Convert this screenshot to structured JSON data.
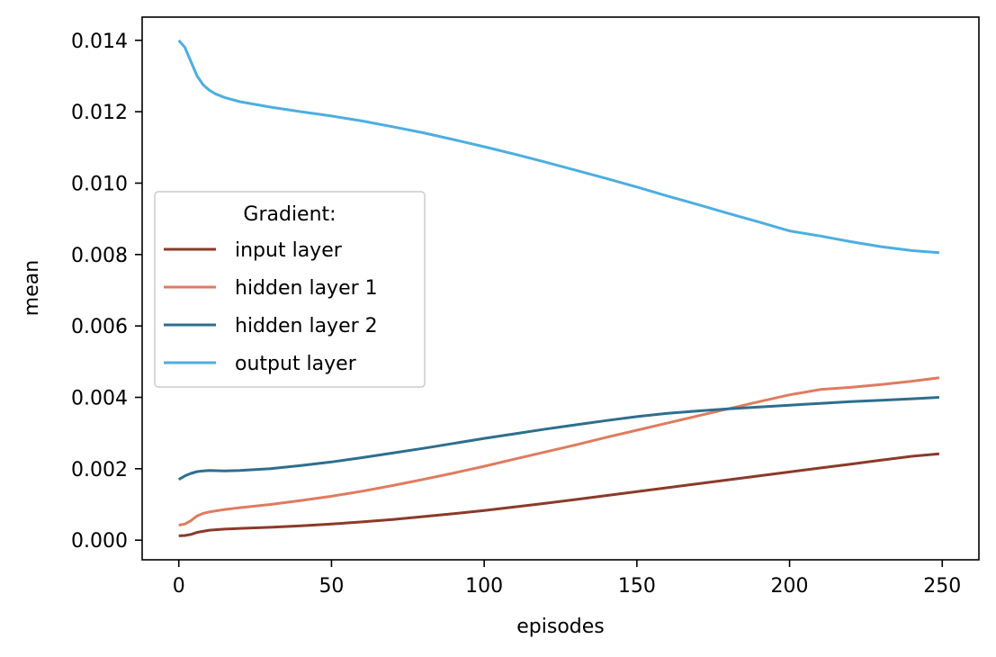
{
  "chart_data": {
    "type": "line",
    "title": "",
    "xlabel": "episodes",
    "ylabel": "mean",
    "xlim": [
      -12,
      262
    ],
    "ylim": [
      -0.00055,
      0.01465
    ],
    "xticks": [
      0,
      50,
      100,
      150,
      200,
      250
    ],
    "xtick_labels": [
      "0",
      "50",
      "100",
      "150",
      "200",
      "250"
    ],
    "yticks": [
      0.0,
      0.002,
      0.004,
      0.006,
      0.008,
      0.01,
      0.012,
      0.014
    ],
    "ytick_labels": [
      "0.000",
      "0.002",
      "0.004",
      "0.006",
      "0.008",
      "0.010",
      "0.012",
      "0.014"
    ],
    "grid": false,
    "legend": {
      "title": "Gradient:",
      "position": "center-left"
    },
    "series": [
      {
        "name": "input layer",
        "color": "#8b3a2a",
        "x": [
          0,
          2,
          4,
          6,
          10,
          15,
          20,
          30,
          40,
          50,
          60,
          70,
          80,
          90,
          100,
          110,
          120,
          130,
          140,
          150,
          160,
          170,
          180,
          190,
          200,
          210,
          220,
          230,
          240,
          249
        ],
        "y": [
          0.00012,
          0.00013,
          0.00016,
          0.00022,
          0.00028,
          0.00031,
          0.00033,
          0.00036,
          0.0004,
          0.00045,
          0.00051,
          0.00058,
          0.00066,
          0.00074,
          0.00083,
          0.00093,
          0.00103,
          0.00114,
          0.00125,
          0.00136,
          0.00147,
          0.00158,
          0.00169,
          0.0018,
          0.00191,
          0.00202,
          0.00213,
          0.00224,
          0.00235,
          0.00242
        ]
      },
      {
        "name": "hidden layer 1",
        "color": "#e07b5f",
        "x": [
          0,
          2,
          4,
          6,
          8,
          10,
          15,
          20,
          30,
          40,
          50,
          60,
          70,
          80,
          90,
          100,
          110,
          120,
          130,
          140,
          150,
          160,
          170,
          180,
          190,
          200,
          210,
          220,
          230,
          240,
          249
        ],
        "y": [
          0.00042,
          0.00045,
          0.00055,
          0.00068,
          0.00075,
          0.00079,
          0.00086,
          0.00091,
          0.001,
          0.00111,
          0.00123,
          0.00137,
          0.00153,
          0.0017,
          0.00188,
          0.00207,
          0.00227,
          0.00247,
          0.00267,
          0.00288,
          0.00308,
          0.00328,
          0.00348,
          0.00368,
          0.00388,
          0.00407,
          0.00422,
          0.00428,
          0.00436,
          0.00445,
          0.00455
        ]
      },
      {
        "name": "hidden layer 2",
        "color": "#2e6e8e",
        "x": [
          0,
          2,
          4,
          6,
          8,
          10,
          15,
          20,
          30,
          40,
          50,
          60,
          70,
          80,
          90,
          100,
          110,
          120,
          130,
          140,
          150,
          160,
          170,
          180,
          190,
          200,
          210,
          220,
          230,
          240,
          249
        ],
        "y": [
          0.0017,
          0.0018,
          0.00187,
          0.00192,
          0.00194,
          0.00195,
          0.00194,
          0.00195,
          0.002,
          0.00209,
          0.00219,
          0.00231,
          0.00244,
          0.00257,
          0.00271,
          0.00285,
          0.00298,
          0.00311,
          0.00323,
          0.00335,
          0.00346,
          0.00355,
          0.00362,
          0.00368,
          0.00373,
          0.00378,
          0.00383,
          0.00388,
          0.00392,
          0.00396,
          0.004
        ]
      },
      {
        "name": "output layer",
        "color": "#4daee0",
        "x": [
          0,
          2,
          4,
          6,
          8,
          10,
          12,
          15,
          20,
          30,
          40,
          50,
          60,
          70,
          80,
          90,
          100,
          110,
          120,
          130,
          140,
          150,
          160,
          170,
          180,
          190,
          200,
          210,
          220,
          230,
          240,
          249
        ],
        "y": [
          0.014,
          0.0138,
          0.0134,
          0.013,
          0.01275,
          0.0126,
          0.0125,
          0.0124,
          0.01228,
          0.01213,
          0.012,
          0.01188,
          0.01174,
          0.01158,
          0.01141,
          0.01122,
          0.01102,
          0.01081,
          0.01059,
          0.01036,
          0.01013,
          0.00989,
          0.00964,
          0.0094,
          0.00915,
          0.00891,
          0.00866,
          0.00852,
          0.00836,
          0.00822,
          0.00811,
          0.00805
        ]
      }
    ]
  }
}
